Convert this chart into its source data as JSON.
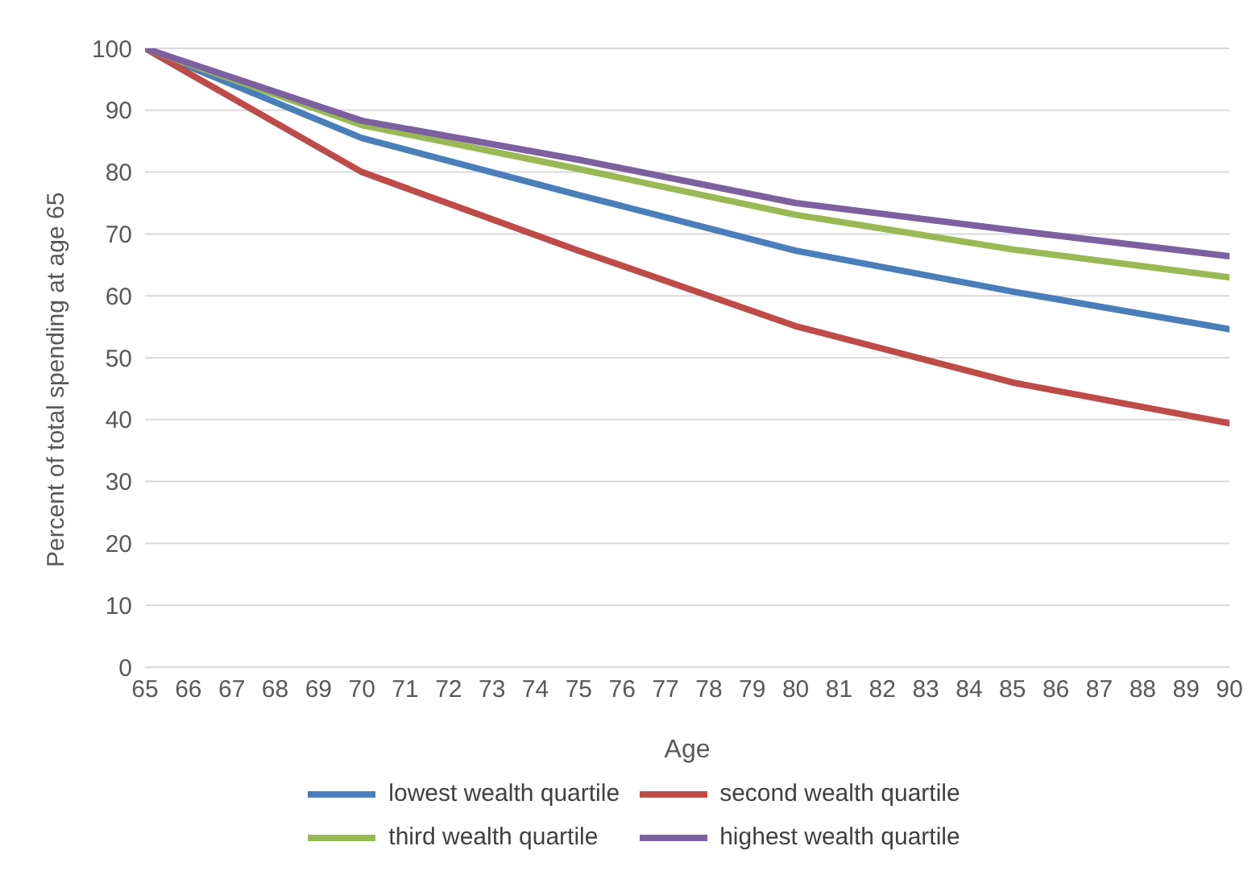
{
  "chart_data": {
    "type": "line",
    "xlabel": "Age",
    "ylabel": "Percent of total spending at age 65",
    "x": [
      65,
      70,
      75,
      80,
      85,
      90
    ],
    "series": [
      {
        "name": "lowest wealth quartile",
        "color": "#4a7ebb",
        "values": [
          100,
          85.5,
          76.3,
          67.3,
          60.7,
          54.6
        ]
      },
      {
        "name": "second wealth quartile",
        "color": "#be4b48",
        "values": [
          100,
          80,
          67.3,
          55.1,
          46,
          39.4
        ]
      },
      {
        "name": "third wealth quartile",
        "color": "#98b954",
        "values": [
          100,
          87.6,
          80.5,
          73.1,
          67.5,
          63
        ]
      },
      {
        "name": "highest wealth quartile",
        "color": "#7d60a0",
        "values": [
          100,
          88.3,
          82,
          75,
          70.6,
          66.4
        ]
      }
    ],
    "xlim": [
      65,
      90
    ],
    "xticks": [
      65,
      66,
      67,
      68,
      69,
      70,
      71,
      72,
      73,
      74,
      75,
      76,
      77,
      78,
      79,
      80,
      81,
      82,
      83,
      84,
      85,
      86,
      87,
      88,
      89,
      90
    ],
    "ylim": [
      0,
      100
    ],
    "yticks": [
      0,
      10,
      20,
      30,
      40,
      50,
      60,
      70,
      80,
      90,
      100
    ],
    "grid": "y",
    "legend": "bottom",
    "marker": "none",
    "line_style": "solid"
  }
}
